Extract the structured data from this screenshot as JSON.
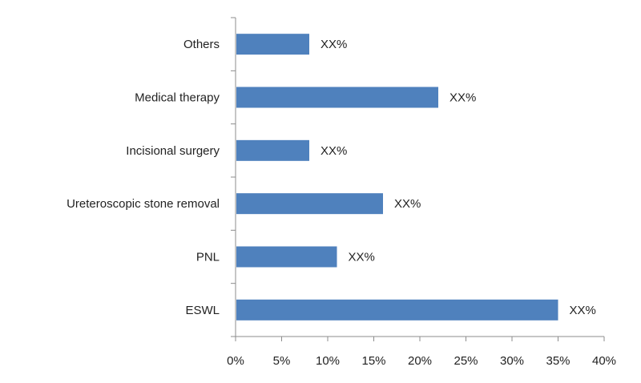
{
  "chart_data": {
    "type": "bar",
    "orientation": "horizontal",
    "categories": [
      "Others",
      "Medical therapy",
      "Incisional surgery",
      "Ureteroscopic stone removal",
      "PNL",
      "ESWL"
    ],
    "values": [
      8,
      22,
      8,
      16,
      11,
      35
    ],
    "data_labels": [
      "XX%",
      "XX%",
      "XX%",
      "XX%",
      "XX%",
      "XX%"
    ],
    "x_ticks": [
      "0%",
      "5%",
      "10%",
      "15%",
      "20%",
      "25%",
      "30%",
      "35%",
      "40%"
    ],
    "xlim": [
      0,
      40
    ],
    "bar_color": "#4f81bd",
    "grid": false,
    "legend": "none"
  }
}
